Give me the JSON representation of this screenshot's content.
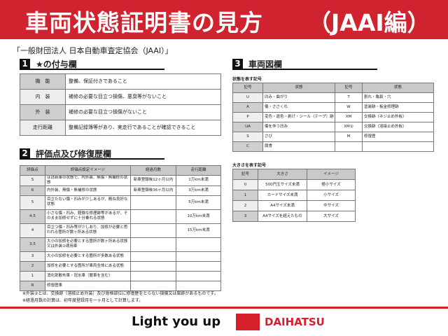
{
  "header": {
    "title": "車両状態証明書の見方",
    "title_suffix": "（JAAI編）",
    "subtitle": "「一般財団法人 日本自動車査定協会（JAAI）」",
    "color": "#cf2430"
  },
  "section1": {
    "num": "1",
    "title": "★の付与欄",
    "rows": [
      [
        "機　能",
        "整備、保証付きであること"
      ],
      [
        "内　装",
        "補修の必要な目立つ損傷、悪臭等がないこと"
      ],
      [
        "外　装",
        "補修の必要な目立つ損傷がないこと"
      ],
      [
        "走行距離",
        "整備記録簿等があり、実走行であることが確認できること"
      ]
    ]
  },
  "section2": {
    "num": "2",
    "title": "評価点及び修復歴欄",
    "headers": [
      "評価点",
      "評価点設定イメージ",
      "経過月数",
      "走行距離"
    ],
    "rows": [
      [
        "S",
        "ほぼ新車の状態で、内外装、無傷・無補修の状態",
        "新車登録後12ヶ月以内",
        "1万km未満"
      ],
      [
        "6",
        "内外装、無傷・無補修の状態",
        "新車登録後36ヶ月以内",
        "3万km未満"
      ],
      [
        "5",
        "目立たない傷・凹みが少しあるが、概ね良好な状態",
        "",
        "5万km未満"
      ],
      [
        "4.5",
        "小さな傷・凹み、軽微な修理跡等があるが、そのまま加修せずに十分乗れる状態",
        "",
        "10万km未満"
      ],
      [
        "4",
        "目立つ傷・凹み等が少しあり、加修が必要と思われる箇所が数ヶ所ある状態",
        "",
        "15万km未満"
      ],
      [
        "3.5",
        "大小の加修を必要とする箇所が数ヶ所ある状態又は外装②適用車",
        "",
        ""
      ],
      [
        "3",
        "大小の加修を必要とする箇所が多数ある状態",
        "",
        ""
      ],
      [
        "2",
        "加修を必要とする箇所が車両全体にある状態",
        "",
        ""
      ],
      [
        "1",
        "消化剤散布車・冠水車（層車を含む）",
        "",
        ""
      ],
      [
        "R",
        "修復歴車",
        "",
        ""
      ]
    ],
    "notes": [
      "※外装②とは、交換跡（溶接止め外装）及び骨格部位に修復歴をとらない損傷又は腐跡があるものです。",
      "※経過月数の計算は、初年度登録月を一ヶ月として計算します。"
    ]
  },
  "section3": {
    "num": "3",
    "title": "車両図欄",
    "state_label": "状態を表す記号",
    "state_headers": [
      "記号",
      "状態",
      "記号",
      "状態"
    ],
    "state_rows": [
      [
        "U",
        "凹み・曲がり",
        "T",
        "割れ・亀裂・穴"
      ],
      [
        "A",
        "傷・ささくれ",
        "W",
        "塗装跡・板金修理跡"
      ],
      [
        "P",
        "変色・退色・剥げ・シール（テープ）跡",
        "XM",
        "交換跡（ネジ止め外板）"
      ],
      [
        "UA",
        "傷を伴う凹み",
        "XM②",
        "交換跡（溶接止め外板）"
      ],
      [
        "S",
        "さび",
        "M",
        "修復歴"
      ],
      [
        "C",
        "腐食",
        "",
        ""
      ]
    ],
    "size_label": "大きさを表す記号",
    "size_headers": [
      "記号",
      "大きさ",
      "イメージ"
    ],
    "size_rows": [
      [
        "0",
        "500円玉サイズ未満",
        "極小サイズ"
      ],
      [
        "1",
        "カードサイズ未満",
        "小サイズ"
      ],
      [
        "2",
        "A4サイズ未満",
        "中サイズ"
      ],
      [
        "3",
        "A4サイズを超えたもの",
        "大サイズ"
      ]
    ]
  },
  "footer": {
    "slogan": "Light you up",
    "brand": "DAIHATSU",
    "brand_color": "#d4202a"
  }
}
